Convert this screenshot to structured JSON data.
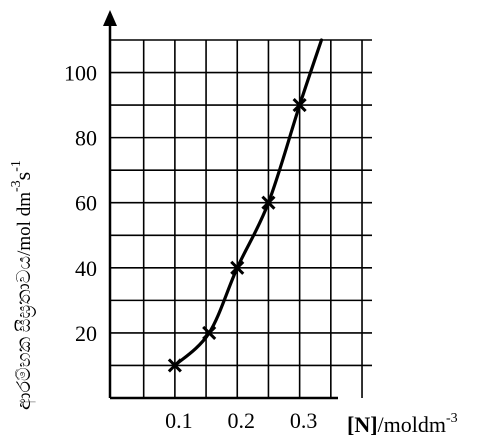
{
  "chart_data": {
    "type": "line",
    "xlabel_bold": "[N]",
    "xlabel_rest": "/moldm",
    "xlabel_sup": "-3",
    "ylabel_main": "ආරම්භක සීඝ්‍රතාවය/mol dm",
    "ylabel_sup1": "-3",
    "ylabel_mid": "s",
    "ylabel_sup2": "-1",
    "xticks": [
      0.1,
      0.2,
      0.3
    ],
    "xtick_labels": [
      "0.1",
      "0.2",
      "0.3"
    ],
    "yticks": [
      20,
      40,
      60,
      80,
      100
    ],
    "ytick_labels": [
      "20",
      "40",
      "60",
      "80",
      "100"
    ],
    "xlim": [
      0,
      0.42
    ],
    "ylim": [
      0,
      110
    ],
    "grid": true,
    "series": [
      {
        "points": [
          {
            "x": 0.1,
            "y": 10
          },
          {
            "x": 0.155,
            "y": 20
          },
          {
            "x": 0.2,
            "y": 40
          },
          {
            "x": 0.25,
            "y": 60
          },
          {
            "x": 0.3,
            "y": 90
          }
        ],
        "curve_end": {
          "x": 0.335,
          "y": 110
        }
      }
    ],
    "marker": "x",
    "colors": {
      "line": "#000000",
      "grid": "#000000"
    }
  }
}
